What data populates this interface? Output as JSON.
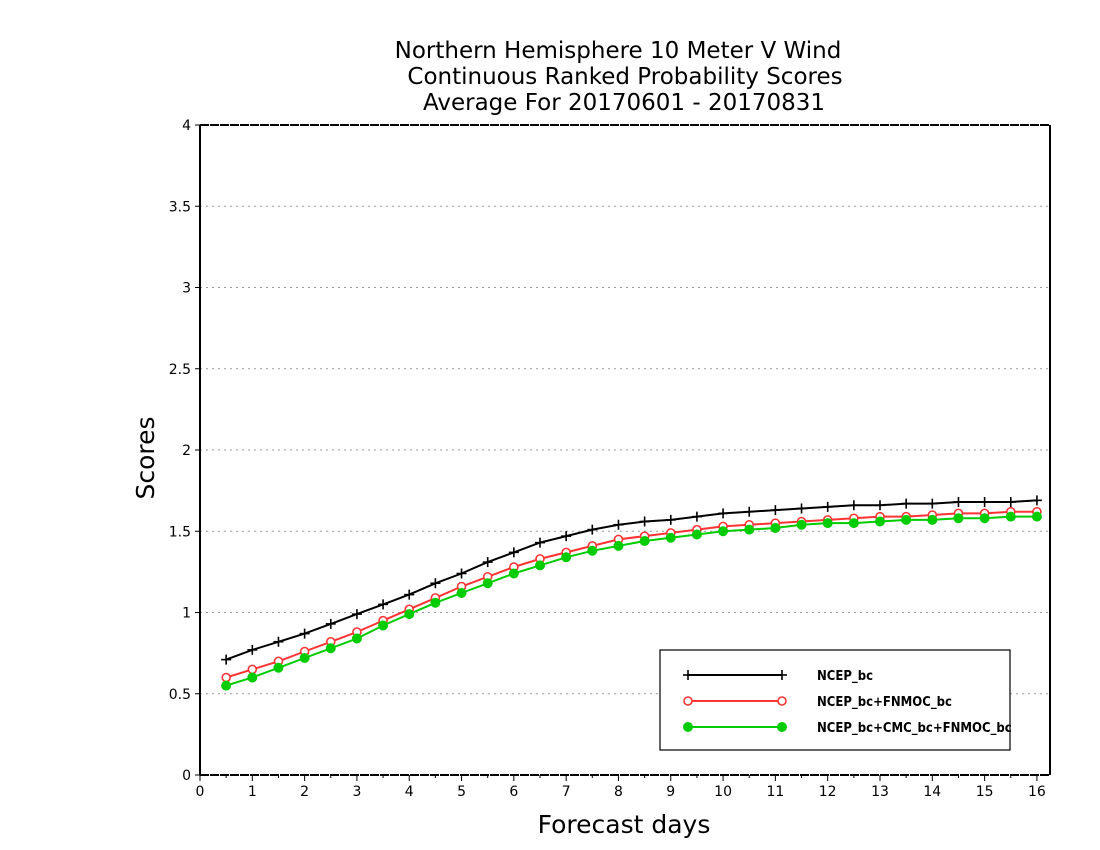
{
  "chart_data": {
    "type": "line",
    "title": [
      "Northern Hemisphere 10 Meter V Wind",
      "Continuous Ranked Probability Scores",
      "Average For 20170601 - 20170831"
    ],
    "xlabel": "Forecast days",
    "ylabel": "Scores",
    "xlim": [
      0,
      16.25
    ],
    "ylim": [
      0,
      4
    ],
    "xticks": [
      "0",
      "1",
      "2",
      "3",
      "4",
      "5",
      "6",
      "7",
      "8",
      "9",
      "10",
      "11",
      "12",
      "13",
      "14",
      "15",
      "16"
    ],
    "yticks": [
      "0",
      "0.5",
      "1",
      "1.5",
      "2",
      "2.5",
      "3",
      "3.5",
      "4"
    ],
    "grid": "horizontal-dotted",
    "legend_position": "bottom-right",
    "x": [
      0.5,
      1,
      1.5,
      2,
      2.5,
      3,
      3.5,
      4,
      4.5,
      5,
      5.5,
      6,
      6.5,
      7,
      7.5,
      8,
      8.5,
      9,
      9.5,
      10,
      10.5,
      11,
      11.5,
      12,
      12.5,
      13,
      13.5,
      14,
      14.5,
      15,
      15.5,
      16
    ],
    "series": [
      {
        "name": "NCEP_bc",
        "color": "#000000",
        "marker": "plus",
        "values": [
          0.71,
          0.77,
          0.82,
          0.87,
          0.93,
          0.99,
          1.05,
          1.11,
          1.18,
          1.24,
          1.31,
          1.37,
          1.43,
          1.47,
          1.51,
          1.54,
          1.56,
          1.57,
          1.59,
          1.61,
          1.62,
          1.63,
          1.64,
          1.65,
          1.66,
          1.66,
          1.67,
          1.67,
          1.68,
          1.68,
          1.68,
          1.69
        ]
      },
      {
        "name": "NCEP_bc+FNMOC_bc",
        "color": "#ff3333",
        "marker": "open-circle",
        "values": [
          0.6,
          0.65,
          0.7,
          0.76,
          0.82,
          0.88,
          0.95,
          1.02,
          1.09,
          1.16,
          1.22,
          1.28,
          1.33,
          1.37,
          1.41,
          1.45,
          1.47,
          1.49,
          1.51,
          1.53,
          1.54,
          1.55,
          1.56,
          1.57,
          1.58,
          1.59,
          1.59,
          1.6,
          1.61,
          1.61,
          1.62,
          1.62
        ]
      },
      {
        "name": "NCEP_bc+CMC_bc+FNMOC_bc",
        "color": "#00cc00",
        "marker": "filled-circle",
        "values": [
          0.55,
          0.6,
          0.66,
          0.72,
          0.78,
          0.84,
          0.92,
          0.99,
          1.06,
          1.12,
          1.18,
          1.24,
          1.29,
          1.34,
          1.38,
          1.41,
          1.44,
          1.46,
          1.48,
          1.5,
          1.51,
          1.52,
          1.54,
          1.55,
          1.55,
          1.56,
          1.57,
          1.57,
          1.58,
          1.58,
          1.59,
          1.59
        ]
      }
    ]
  }
}
